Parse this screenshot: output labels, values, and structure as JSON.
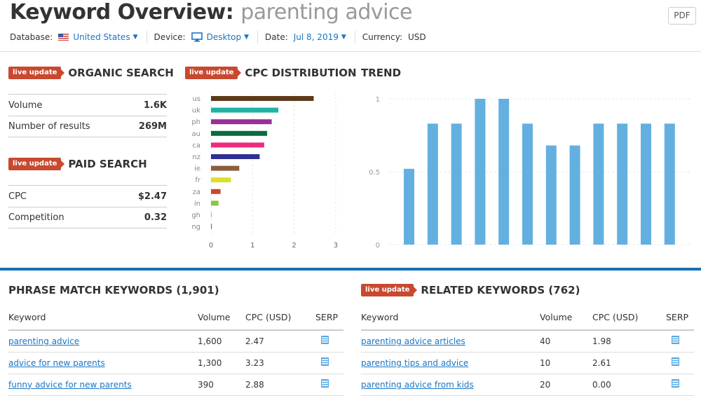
{
  "header": {
    "title": "Keyword Overview:",
    "keyword": "parenting advice",
    "pdf": "PDF"
  },
  "filters": {
    "database_label": "Database:",
    "database": "United States",
    "device_label": "Device:",
    "device": "Desktop",
    "date_label": "Date:",
    "date": "Jul 8, 2019",
    "currency_label": "Currency:",
    "currency": "USD"
  },
  "live": "live update",
  "organic": {
    "title": "ORGANIC SEARCH",
    "rows": [
      {
        "label": "Volume",
        "value": "1.6K"
      },
      {
        "label": "Number of results",
        "value": "269M"
      }
    ]
  },
  "paid": {
    "title": "PAID SEARCH",
    "rows": [
      {
        "label": "CPC",
        "value": "$2.47"
      },
      {
        "label": "Competition",
        "value": "0.32"
      }
    ]
  },
  "cpc_title": "CPC DISTRIBUTION",
  "trend_title": "TREND",
  "chart_data": [
    {
      "type": "bar",
      "orientation": "horizontal",
      "title": "CPC DISTRIBUTION",
      "categories": [
        "us",
        "uk",
        "ph",
        "au",
        "ca",
        "nz",
        "ie",
        "fr",
        "za",
        "in",
        "gh",
        "ng"
      ],
      "values": [
        2.47,
        1.62,
        1.46,
        1.35,
        1.28,
        1.17,
        0.68,
        0.48,
        0.23,
        0.18,
        0.02,
        0.02
      ],
      "colors": [
        "#5c3a1a",
        "#1fb3a7",
        "#96309a",
        "#0a6b3f",
        "#ee2a7b",
        "#2e3192",
        "#8b5e3c",
        "#dde028",
        "#c8492f",
        "#8dc63f",
        "#e8a090",
        "#3a7fc4"
      ],
      "xlim": [
        0,
        3
      ],
      "xticks": [
        "0",
        "1",
        "2",
        "3"
      ],
      "grid": true
    },
    {
      "type": "bar",
      "title": "TREND",
      "values": [
        0.52,
        0.83,
        0.83,
        1,
        1,
        0.83,
        0.68,
        0.68,
        0.83,
        0.83,
        0.83,
        0.83
      ],
      "ylim": [
        0,
        1
      ],
      "yticks": [
        "0",
        "0.5",
        "1"
      ],
      "color": "#63b0e0",
      "grid": true
    }
  ],
  "phrase": {
    "title": "PHRASE MATCH KEYWORDS (1,901)",
    "cols": [
      "Keyword",
      "Volume",
      "CPC (USD)",
      "SERP"
    ],
    "rows": [
      [
        "parenting advice",
        "1,600",
        "2.47"
      ],
      [
        "advice for new parents",
        "1,300",
        "3.23"
      ],
      [
        "funny advice for new parents",
        "390",
        "2.88"
      ]
    ]
  },
  "related": {
    "title": "RELATED KEYWORDS (762)",
    "cols": [
      "Keyword",
      "Volume",
      "CPC (USD)",
      "SERP"
    ],
    "rows": [
      [
        "parenting advice articles",
        "40",
        "1.98"
      ],
      [
        "parenting tips and advice",
        "10",
        "2.61"
      ],
      [
        "parenting advice from kids",
        "20",
        "0.00"
      ]
    ]
  }
}
